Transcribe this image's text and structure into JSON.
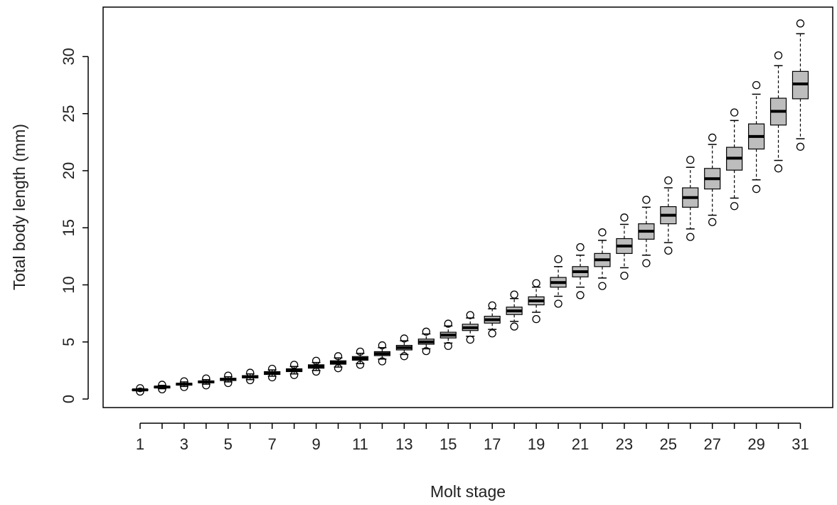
{
  "chart_data": {
    "type": "boxplot",
    "xlabel": "Molt stage",
    "ylabel": "Total body length (mm)",
    "ylim": [
      0,
      33
    ],
    "yticks": [
      0,
      5,
      10,
      15,
      20,
      25,
      30
    ],
    "categories": [
      "1",
      "2",
      "3",
      "4",
      "5",
      "6",
      "7",
      "8",
      "9",
      "10",
      "11",
      "12",
      "13",
      "14",
      "15",
      "16",
      "17",
      "18",
      "19",
      "20",
      "21",
      "22",
      "23",
      "24",
      "25",
      "26",
      "27",
      "28",
      "29",
      "30",
      "31"
    ],
    "xtick_labels_shown": [
      "1",
      "3",
      "5",
      "7",
      "9",
      "11",
      "13",
      "15",
      "17",
      "19",
      "21",
      "23",
      "25",
      "27",
      "29",
      "31"
    ],
    "box_fill": "#bdbdbd",
    "boxes": [
      {
        "stage": "1",
        "min": 0.7,
        "q1": 0.75,
        "median": 0.8,
        "q3": 0.85,
        "max": 0.9,
        "outliers": [
          0.65,
          0.95
        ]
      },
      {
        "stage": "2",
        "min": 0.9,
        "q1": 0.97,
        "median": 1.05,
        "q3": 1.12,
        "max": 1.2,
        "outliers": [
          0.85,
          1.25
        ]
      },
      {
        "stage": "3",
        "min": 1.1,
        "q1": 1.22,
        "median": 1.3,
        "q3": 1.38,
        "max": 1.5,
        "outliers": [
          1.05,
          1.55
        ]
      },
      {
        "stage": "4",
        "min": 1.3,
        "q1": 1.42,
        "median": 1.5,
        "q3": 1.58,
        "max": 1.7,
        "outliers": [
          1.2,
          1.8
        ]
      },
      {
        "stage": "5",
        "min": 1.5,
        "q1": 1.62,
        "median": 1.72,
        "q3": 1.82,
        "max": 1.95,
        "outliers": [
          1.4,
          2.05
        ]
      },
      {
        "stage": "6",
        "min": 1.7,
        "q1": 1.85,
        "median": 1.95,
        "q3": 2.05,
        "max": 2.2,
        "outliers": [
          1.65,
          2.3
        ]
      },
      {
        "stage": "7",
        "min": 2.0,
        "q1": 2.15,
        "median": 2.28,
        "q3": 2.4,
        "max": 2.55,
        "outliers": [
          1.9,
          2.65
        ]
      },
      {
        "stage": "8",
        "min": 2.2,
        "q1": 2.4,
        "median": 2.52,
        "q3": 2.65,
        "max": 2.85,
        "outliers": [
          2.1,
          3.0
        ]
      },
      {
        "stage": "9",
        "min": 2.5,
        "q1": 2.7,
        "median": 2.85,
        "q3": 3.0,
        "max": 3.2,
        "outliers": [
          2.4,
          3.35
        ]
      },
      {
        "stage": "10",
        "min": 2.8,
        "q1": 3.05,
        "median": 3.2,
        "q3": 3.35,
        "max": 3.6,
        "outliers": [
          2.7,
          3.75
        ]
      },
      {
        "stage": "11",
        "min": 3.1,
        "q1": 3.4,
        "median": 3.55,
        "q3": 3.72,
        "max": 4.0,
        "outliers": [
          3.0,
          4.15
        ]
      },
      {
        "stage": "12",
        "min": 3.5,
        "q1": 3.8,
        "median": 3.97,
        "q3": 4.15,
        "max": 4.5,
        "outliers": [
          3.3,
          4.7
        ]
      },
      {
        "stage": "13",
        "min": 3.9,
        "q1": 4.3,
        "median": 4.5,
        "q3": 4.7,
        "max": 5.1,
        "outliers": [
          3.75,
          5.3
        ]
      },
      {
        "stage": "14",
        "min": 4.4,
        "q1": 4.8,
        "median": 5.0,
        "q3": 5.25,
        "max": 5.7,
        "outliers": [
          4.2,
          5.9
        ]
      },
      {
        "stage": "15",
        "min": 4.9,
        "q1": 5.35,
        "median": 5.6,
        "q3": 5.85,
        "max": 6.4,
        "outliers": [
          4.65,
          6.6
        ]
      },
      {
        "stage": "16",
        "min": 5.5,
        "q1": 6.0,
        "median": 6.25,
        "q3": 6.55,
        "max": 7.1,
        "outliers": [
          5.2,
          7.35
        ]
      },
      {
        "stage": "17",
        "min": 6.1,
        "q1": 6.65,
        "median": 6.95,
        "q3": 7.25,
        "max": 7.9,
        "outliers": [
          5.75,
          8.2
        ]
      },
      {
        "stage": "18",
        "min": 6.8,
        "q1": 7.4,
        "median": 7.72,
        "q3": 8.05,
        "max": 8.8,
        "outliers": [
          6.35,
          9.15
        ]
      },
      {
        "stage": "19",
        "min": 7.6,
        "q1": 8.25,
        "median": 8.6,
        "q3": 8.95,
        "max": 9.8,
        "outliers": [
          7.0,
          10.15
        ]
      },
      {
        "stage": "20",
        "min": 9.0,
        "q1": 9.8,
        "median": 10.2,
        "q3": 10.65,
        "max": 11.6,
        "outliers": [
          8.35,
          12.25
        ]
      },
      {
        "stage": "21",
        "min": 9.8,
        "q1": 10.7,
        "median": 11.15,
        "q3": 11.6,
        "max": 12.6,
        "outliers": [
          9.1,
          13.3
        ]
      },
      {
        "stage": "22",
        "min": 10.6,
        "q1": 11.6,
        "median": 12.2,
        "q3": 12.75,
        "max": 13.9,
        "outliers": [
          9.9,
          14.6
        ]
      },
      {
        "stage": "23",
        "min": 11.5,
        "q1": 12.75,
        "median": 13.4,
        "q3": 14.05,
        "max": 15.3,
        "outliers": [
          10.8,
          15.9
        ]
      },
      {
        "stage": "24",
        "min": 12.6,
        "q1": 14.0,
        "median": 14.7,
        "q3": 15.35,
        "max": 16.8,
        "outliers": [
          11.9,
          17.45
        ]
      },
      {
        "stage": "25",
        "min": 13.7,
        "q1": 15.35,
        "median": 16.1,
        "q3": 16.85,
        "max": 18.5,
        "outliers": [
          13.0,
          19.15
        ]
      },
      {
        "stage": "26",
        "min": 14.9,
        "q1": 16.8,
        "median": 17.65,
        "q3": 18.5,
        "max": 20.3,
        "outliers": [
          14.2,
          20.95
        ]
      },
      {
        "stage": "27",
        "min": 16.1,
        "q1": 18.4,
        "median": 19.3,
        "q3": 20.2,
        "max": 22.3,
        "outliers": [
          15.5,
          22.9
        ]
      },
      {
        "stage": "28",
        "min": 17.6,
        "q1": 20.05,
        "median": 21.1,
        "q3": 22.05,
        "max": 24.4,
        "outliers": [
          16.9,
          25.1
        ]
      },
      {
        "stage": "29",
        "min": 19.2,
        "q1": 21.9,
        "median": 23.0,
        "q3": 24.1,
        "max": 26.7,
        "outliers": [
          18.4,
          27.5
        ]
      },
      {
        "stage": "30",
        "min": 20.9,
        "q1": 24.0,
        "median": 25.2,
        "q3": 26.35,
        "max": 29.2,
        "outliers": [
          20.2,
          30.1
        ]
      },
      {
        "stage": "31",
        "min": 22.8,
        "q1": 26.3,
        "median": 27.6,
        "q3": 28.7,
        "max": 32.0,
        "outliers": [
          22.1,
          32.9
        ]
      }
    ]
  }
}
